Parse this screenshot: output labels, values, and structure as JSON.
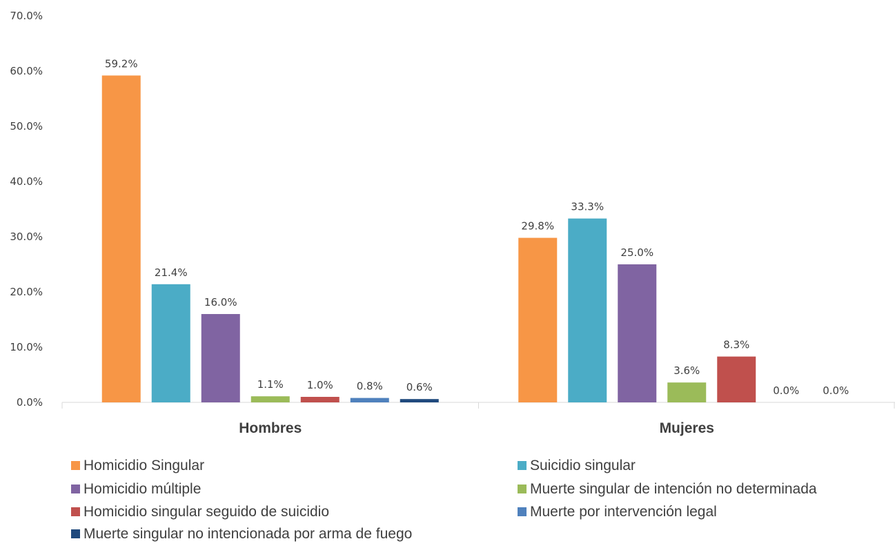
{
  "chart_data": {
    "type": "bar",
    "categories": [
      "Hombres",
      "Mujeres"
    ],
    "ylim": [
      0,
      70
    ],
    "yticks": [
      "0.0%",
      "10.0%",
      "20.0%",
      "30.0%",
      "40.0%",
      "50.0%",
      "60.0%",
      "70.0%"
    ],
    "grid": false,
    "legend_position": "bottom",
    "series": [
      {
        "name": "Homicidio Singular",
        "color": "#F79646",
        "values": [
          59.2,
          29.8
        ],
        "labels": [
          "59.2%",
          "29.8%"
        ]
      },
      {
        "name": "Suicidio singular",
        "color": "#4BACC6",
        "values": [
          21.4,
          33.3
        ],
        "labels": [
          "21.4%",
          "33.3%"
        ]
      },
      {
        "name": "Homicidio múltiple",
        "color": "#8064A2",
        "values": [
          16.0,
          25.0
        ],
        "labels": [
          "16.0%",
          "25.0%"
        ]
      },
      {
        "name": "Muerte singular de intención no determinada",
        "color": "#9BBB59",
        "values": [
          1.1,
          3.6
        ],
        "labels": [
          "1.1%",
          "3.6%"
        ]
      },
      {
        "name": "Homicidio singular seguido de suicidio",
        "color": "#C0504D",
        "values": [
          1.0,
          8.3
        ],
        "labels": [
          "1.0%",
          "8.3%"
        ]
      },
      {
        "name": "Muerte por intervención legal",
        "color": "#4F81BD",
        "values": [
          0.8,
          0.0
        ],
        "labels": [
          "0.8%",
          "0.0%"
        ]
      },
      {
        "name": "Muerte singular no intencionada por arma de fuego",
        "color": "#1F497D",
        "values": [
          0.6,
          0.0
        ],
        "labels": [
          "0.6%",
          "0.0%"
        ]
      }
    ]
  }
}
